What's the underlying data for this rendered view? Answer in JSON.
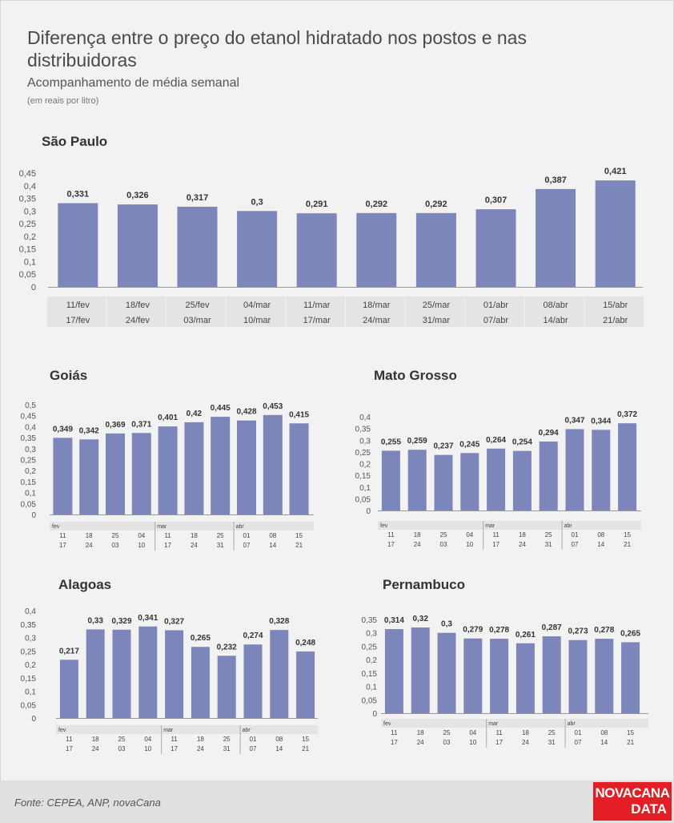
{
  "title": "Diferença entre o preço do etanol hidratado nos postos e nas distribuidoras",
  "subtitle": "Acompanhamento de média semanal",
  "unit": "(em reais por litro)",
  "source": "Fonte: CEPEA, ANP, novaCana",
  "logo": {
    "line1": "NOVACANA",
    "line2": "DATA"
  },
  "colors": {
    "bar": "#7d86ba",
    "label_bg": "#e4e4e4",
    "text": "#333333"
  },
  "chart_data": [
    {
      "type": "bar",
      "title": "São Paulo",
      "categories": [
        {
          "top": "11/fev",
          "bottom": "17/fev"
        },
        {
          "top": "18/fev",
          "bottom": "24/fev"
        },
        {
          "top": "25/fev",
          "bottom": "03/mar"
        },
        {
          "top": "04/mar",
          "bottom": "10/mar"
        },
        {
          "top": "11/mar",
          "bottom": "17/mar"
        },
        {
          "top": "18/mar",
          "bottom": "24/mar"
        },
        {
          "top": "25/mar",
          "bottom": "31/mar"
        },
        {
          "top": "01/abr",
          "bottom": "07/abr"
        },
        {
          "top": "08/abr",
          "bottom": "14/abr"
        },
        {
          "top": "15/abr",
          "bottom": "21/abr"
        }
      ],
      "values": [
        0.331,
        0.326,
        0.317,
        0.3,
        0.291,
        0.292,
        0.292,
        0.307,
        0.387,
        0.421
      ],
      "labels": [
        "0,331",
        "0,326",
        "0,317",
        "0,3",
        "0,291",
        "0,292",
        "0,292",
        "0,307",
        "0,387",
        "0,421"
      ],
      "yticks": [
        "0",
        "0,05",
        "0,1",
        "0,15",
        "0,2",
        "0,25",
        "0,3",
        "0,35",
        "0,4",
        "0,45"
      ],
      "ylim": [
        0,
        0.45
      ]
    },
    {
      "type": "bar",
      "title": "Goiás",
      "months": [
        {
          "name": "fev",
          "start": 0
        },
        {
          "name": "mar",
          "start": 4
        },
        {
          "name": "abr",
          "start": 7
        }
      ],
      "categories": [
        {
          "top": "11",
          "bottom": "17"
        },
        {
          "top": "18",
          "bottom": "24"
        },
        {
          "top": "25",
          "bottom": "03"
        },
        {
          "top": "04",
          "bottom": "10"
        },
        {
          "top": "11",
          "bottom": "17"
        },
        {
          "top": "18",
          "bottom": "24"
        },
        {
          "top": "25",
          "bottom": "31"
        },
        {
          "top": "01",
          "bottom": "07"
        },
        {
          "top": "08",
          "bottom": "14"
        },
        {
          "top": "15",
          "bottom": "21"
        }
      ],
      "values": [
        0.349,
        0.342,
        0.369,
        0.371,
        0.401,
        0.42,
        0.445,
        0.428,
        0.453,
        0.415
      ],
      "labels": [
        "0,349",
        "0,342",
        "0,369",
        "0,371",
        "0,401",
        "0,42",
        "0,445",
        "0,428",
        "0,453",
        "0,415"
      ],
      "yticks": [
        "0",
        "0,05",
        "0,1",
        "0,15",
        "0,2",
        "0,25",
        "0,3",
        "0,35",
        "0,4",
        "0,45",
        "0,5"
      ],
      "ylim": [
        0,
        0.5
      ]
    },
    {
      "type": "bar",
      "title": "Mato Grosso",
      "months": [
        {
          "name": "fev",
          "start": 0
        },
        {
          "name": "mar",
          "start": 4
        },
        {
          "name": "abr",
          "start": 7
        }
      ],
      "categories": [
        {
          "top": "11",
          "bottom": "17"
        },
        {
          "top": "18",
          "bottom": "24"
        },
        {
          "top": "25",
          "bottom": "03"
        },
        {
          "top": "04",
          "bottom": "10"
        },
        {
          "top": "11",
          "bottom": "17"
        },
        {
          "top": "18",
          "bottom": "24"
        },
        {
          "top": "25",
          "bottom": "31"
        },
        {
          "top": "01",
          "bottom": "07"
        },
        {
          "top": "08",
          "bottom": "14"
        },
        {
          "top": "15",
          "bottom": "21"
        }
      ],
      "values": [
        0.255,
        0.259,
        0.237,
        0.245,
        0.264,
        0.254,
        0.294,
        0.347,
        0.344,
        0.372
      ],
      "labels": [
        "0,255",
        "0,259",
        "0,237",
        "0,245",
        "0,264",
        "0,254",
        "0,294",
        "0,347",
        "0,344",
        "0,372"
      ],
      "yticks": [
        "0",
        "0,05",
        "0,1",
        "0,15",
        "0,2",
        "0,25",
        "0,3",
        "0,35",
        "0,4"
      ],
      "ylim": [
        0,
        0.4
      ]
    },
    {
      "type": "bar",
      "title": "Alagoas",
      "months": [
        {
          "name": "fev",
          "start": 0
        },
        {
          "name": "mar",
          "start": 4
        },
        {
          "name": "abr",
          "start": 7
        }
      ],
      "categories": [
        {
          "top": "11",
          "bottom": "17"
        },
        {
          "top": "18",
          "bottom": "24"
        },
        {
          "top": "25",
          "bottom": "03"
        },
        {
          "top": "04",
          "bottom": "10"
        },
        {
          "top": "11",
          "bottom": "17"
        },
        {
          "top": "18",
          "bottom": "24"
        },
        {
          "top": "25",
          "bottom": "31"
        },
        {
          "top": "01",
          "bottom": "07"
        },
        {
          "top": "08",
          "bottom": "14"
        },
        {
          "top": "15",
          "bottom": "21"
        }
      ],
      "values": [
        0.217,
        0.33,
        0.329,
        0.341,
        0.327,
        0.265,
        0.232,
        0.274,
        0.328,
        0.248
      ],
      "labels": [
        "0,217",
        "0,33",
        "0,329",
        "0,341",
        "0,327",
        "0,265",
        "0,232",
        "0,274",
        "0,328",
        "0,248"
      ],
      "yticks": [
        "0",
        "0,05",
        "0,1",
        "0,15",
        "0,2",
        "0,25",
        "0,3",
        "0,35",
        "0,4"
      ],
      "ylim": [
        0,
        0.4
      ]
    },
    {
      "type": "bar",
      "title": "Pernambuco",
      "months": [
        {
          "name": "fev",
          "start": 0
        },
        {
          "name": "mar",
          "start": 4
        },
        {
          "name": "abr",
          "start": 7
        }
      ],
      "categories": [
        {
          "top": "11",
          "bottom": "17"
        },
        {
          "top": "18",
          "bottom": "24"
        },
        {
          "top": "25",
          "bottom": "03"
        },
        {
          "top": "04",
          "bottom": "10"
        },
        {
          "top": "11",
          "bottom": "17"
        },
        {
          "top": "18",
          "bottom": "24"
        },
        {
          "top": "25",
          "bottom": "31"
        },
        {
          "top": "01",
          "bottom": "07"
        },
        {
          "top": "08",
          "bottom": "14"
        },
        {
          "top": "15",
          "bottom": "21"
        }
      ],
      "values": [
        0.314,
        0.32,
        0.3,
        0.279,
        0.278,
        0.261,
        0.287,
        0.273,
        0.278,
        0.265
      ],
      "labels": [
        "0,314",
        "0,32",
        "0,3",
        "0,279",
        "0,278",
        "0,261",
        "0,287",
        "0,273",
        "0,278",
        "0,265"
      ],
      "yticks": [
        "0",
        "0,05",
        "0,1",
        "0,15",
        "0,2",
        "0,25",
        "0,3",
        "0,35"
      ],
      "ylim": [
        0,
        0.35
      ]
    }
  ]
}
